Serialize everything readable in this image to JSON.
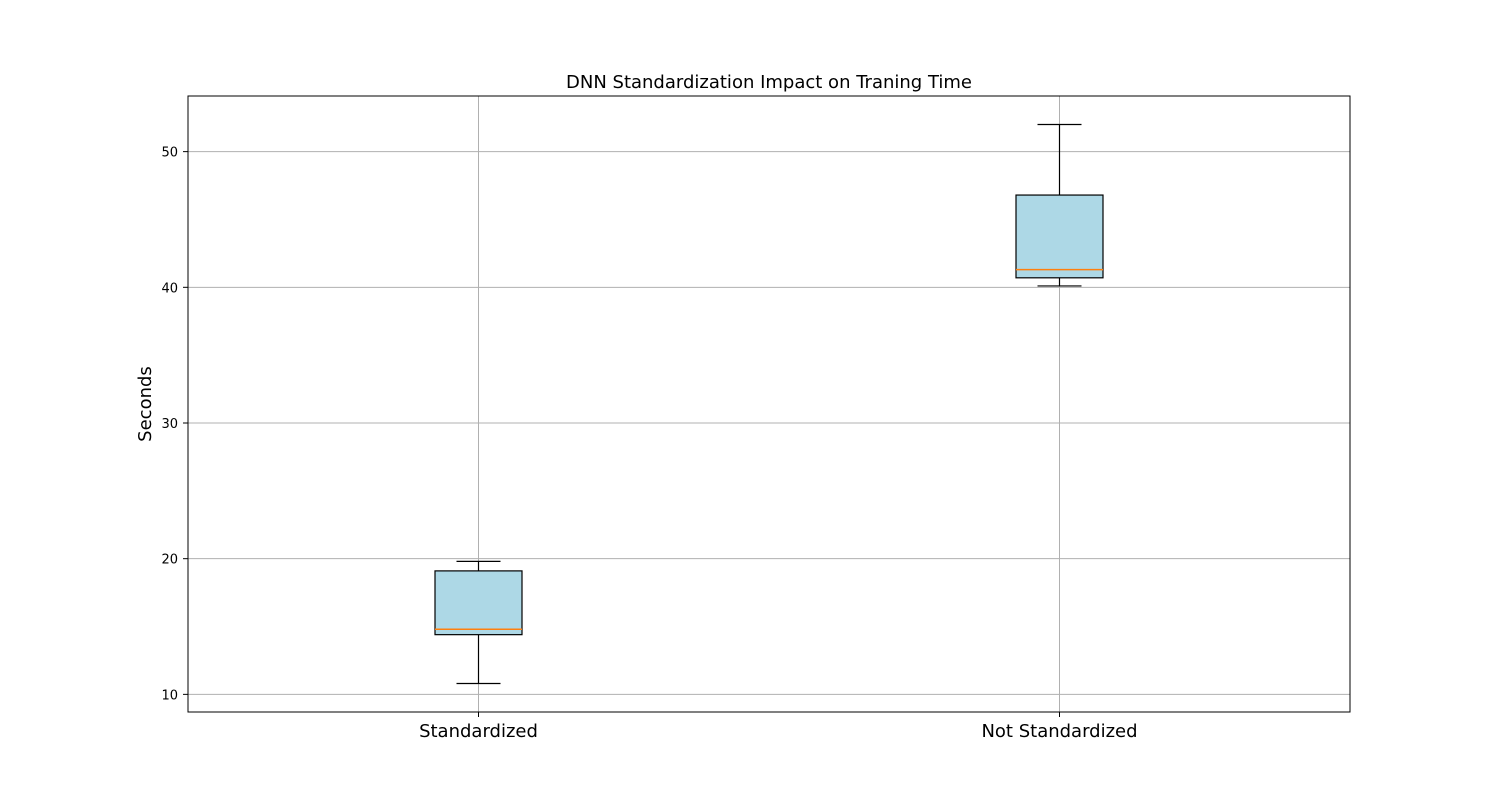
{
  "chart_data": {
    "type": "box",
    "title": "DNN Standardization Impact on Traning Time",
    "xlabel": "",
    "ylabel": "Seconds",
    "ylim": [
      8.7,
      54.1
    ],
    "yticks": [
      10,
      20,
      30,
      40,
      50
    ],
    "grid": true,
    "categories": [
      "Standardized",
      "Not Standardized"
    ],
    "boxes": [
      {
        "category": "Standardized",
        "whisker_low": 10.8,
        "q1": 14.4,
        "median": 14.8,
        "q3": 19.1,
        "whisker_high": 19.8
      },
      {
        "category": "Not Standardized",
        "whisker_low": 40.1,
        "q1": 40.7,
        "median": 41.3,
        "q3": 46.8,
        "whisker_high": 52.0
      }
    ],
    "colors": {
      "box_fill": "#add8e6",
      "box_edge": "#000000",
      "median": "#ff7f0e",
      "grid": "#b0b0b0",
      "axes": "#000000"
    }
  }
}
